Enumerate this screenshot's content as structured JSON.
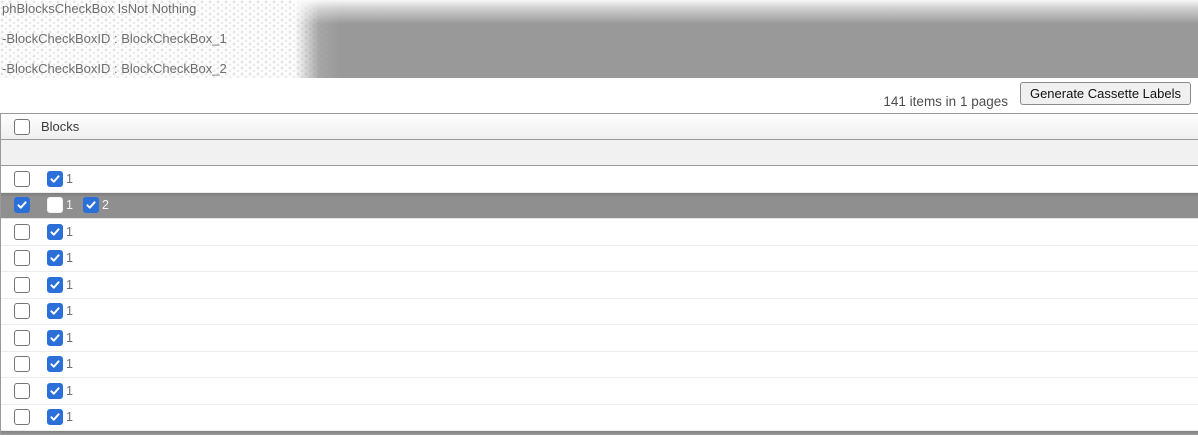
{
  "debug_panel": {
    "lines": [
      "phBlocksCheckBox IsNot Nothing",
      "-BlockCheckBoxID : BlockCheckBox_1",
      "-BlockCheckBoxID : BlockCheckBox_2"
    ]
  },
  "toolbar": {
    "items_summary": "141 items in 1 pages",
    "generate_button_label": "Generate Cassette Labels"
  },
  "table": {
    "header": {
      "column_label": "Blocks",
      "select_all_checked": false
    },
    "rows": [
      {
        "selected": false,
        "row_checked": false,
        "blocks": [
          {
            "label": "1",
            "checked": true
          }
        ]
      },
      {
        "selected": true,
        "row_checked": true,
        "blocks": [
          {
            "label": "1",
            "checked": false
          },
          {
            "label": "2",
            "checked": true
          }
        ]
      },
      {
        "selected": false,
        "row_checked": false,
        "blocks": [
          {
            "label": "1",
            "checked": true
          }
        ]
      },
      {
        "selected": false,
        "row_checked": false,
        "blocks": [
          {
            "label": "1",
            "checked": true
          }
        ]
      },
      {
        "selected": false,
        "row_checked": false,
        "blocks": [
          {
            "label": "1",
            "checked": true
          }
        ]
      },
      {
        "selected": false,
        "row_checked": false,
        "blocks": [
          {
            "label": "1",
            "checked": true
          }
        ]
      },
      {
        "selected": false,
        "row_checked": false,
        "blocks": [
          {
            "label": "1",
            "checked": true
          }
        ]
      },
      {
        "selected": false,
        "row_checked": false,
        "blocks": [
          {
            "label": "1",
            "checked": true
          }
        ]
      },
      {
        "selected": false,
        "row_checked": false,
        "blocks": [
          {
            "label": "1",
            "checked": true
          }
        ]
      },
      {
        "selected": false,
        "row_checked": false,
        "blocks": [
          {
            "label": "1",
            "checked": true
          }
        ]
      },
      {
        "selected": true,
        "partial": true,
        "row_checked": false,
        "blocks": []
      }
    ]
  },
  "colors": {
    "checkbox_accent": "#2a70d8",
    "selected_row_gray": "#8f8f8f",
    "grid_border": "#9a9a9a"
  }
}
